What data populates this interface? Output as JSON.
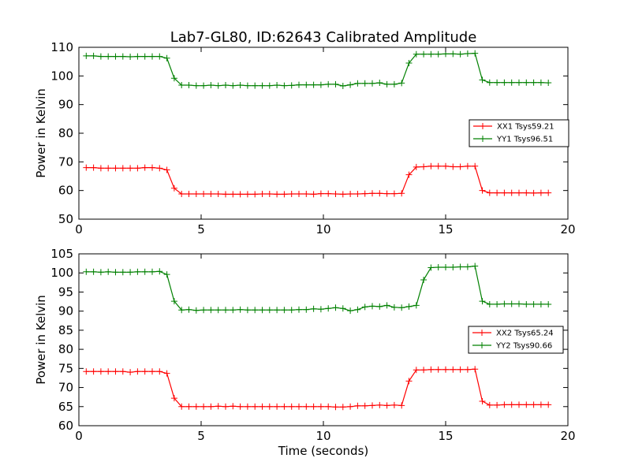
{
  "figure": {
    "title": "Lab7-GL80, ID:62643 Calibrated Amplitude"
  },
  "chart_data": [
    {
      "type": "line",
      "title": "Lab7-GL80, ID:62643 Calibrated Amplitude",
      "xlabel": "",
      "ylabel": "Power in Kelvin",
      "xlim": [
        0,
        20
      ],
      "ylim": [
        50,
        110
      ],
      "xticks": [
        "0",
        "5",
        "10",
        "15",
        "20"
      ],
      "yticks": [
        "50",
        "60",
        "70",
        "80",
        "90",
        "100",
        "110"
      ],
      "grid": false,
      "legend_position": "center-right",
      "x": [
        0.3,
        0.6,
        0.9,
        1.2,
        1.5,
        1.8,
        2.1,
        2.4,
        2.7,
        3.0,
        3.3,
        3.6,
        3.9,
        4.2,
        4.5,
        4.8,
        5.1,
        5.4,
        5.7,
        6.0,
        6.3,
        6.6,
        6.9,
        7.2,
        7.5,
        7.8,
        8.1,
        8.4,
        8.7,
        9.0,
        9.3,
        9.6,
        9.9,
        10.2,
        10.5,
        10.8,
        11.1,
        11.4,
        11.7,
        12.0,
        12.3,
        12.6,
        12.9,
        13.2,
        13.5,
        13.8,
        14.1,
        14.4,
        14.7,
        15.0,
        15.3,
        15.6,
        15.9,
        16.2,
        16.5,
        16.8,
        17.1,
        17.4,
        17.7,
        18.0,
        18.3,
        18.6,
        18.9,
        19.2
      ],
      "series": [
        {
          "name": "XX1 Tsys59.21",
          "color": "#ff0000",
          "values": [
            68.0,
            68.0,
            67.8,
            67.8,
            67.8,
            67.8,
            67.8,
            67.8,
            68.0,
            68.0,
            67.8,
            67.2,
            60.8,
            58.8,
            58.8,
            58.8,
            58.8,
            58.8,
            58.8,
            58.7,
            58.7,
            58.7,
            58.7,
            58.7,
            58.8,
            58.8,
            58.7,
            58.7,
            58.8,
            58.8,
            58.8,
            58.7,
            58.9,
            58.9,
            58.8,
            58.7,
            58.8,
            58.8,
            58.9,
            59.0,
            59.0,
            58.9,
            58.9,
            59.0,
            65.5,
            68.2,
            68.3,
            68.5,
            68.5,
            68.5,
            68.3,
            68.3,
            68.5,
            68.5,
            60.0,
            59.2,
            59.2,
            59.2,
            59.2,
            59.2,
            59.2,
            59.1,
            59.2,
            59.2
          ]
        },
        {
          "name": "YY1 Tsys96.51",
          "color": "#008000",
          "values": [
            107.0,
            107.0,
            106.8,
            106.8,
            106.8,
            106.8,
            106.7,
            106.8,
            106.8,
            106.8,
            106.8,
            106.2,
            99.2,
            96.8,
            96.8,
            96.6,
            96.6,
            96.8,
            96.6,
            96.8,
            96.6,
            96.8,
            96.6,
            96.6,
            96.6,
            96.6,
            96.8,
            96.6,
            96.7,
            96.9,
            96.9,
            96.9,
            96.9,
            97.1,
            97.1,
            96.5,
            96.9,
            97.4,
            97.4,
            97.4,
            97.6,
            97.1,
            97.1,
            97.5,
            104.5,
            107.6,
            107.6,
            107.6,
            107.6,
            107.7,
            107.7,
            107.6,
            107.8,
            107.9,
            98.6,
            97.7,
            97.7,
            97.7,
            97.7,
            97.7,
            97.7,
            97.7,
            97.7,
            97.6
          ]
        }
      ]
    },
    {
      "type": "line",
      "title": "",
      "xlabel": "Time (seconds)",
      "ylabel": "Power in Kelvin",
      "xlim": [
        0,
        20
      ],
      "ylim": [
        60,
        105
      ],
      "xticks": [
        "0",
        "5",
        "10",
        "15",
        "20"
      ],
      "yticks": [
        "60",
        "65",
        "70",
        "75",
        "80",
        "85",
        "90",
        "95",
        "100",
        "105"
      ],
      "grid": false,
      "legend_position": "center-right",
      "x": [
        0.3,
        0.6,
        0.9,
        1.2,
        1.5,
        1.8,
        2.1,
        2.4,
        2.7,
        3.0,
        3.3,
        3.6,
        3.9,
        4.2,
        4.5,
        4.8,
        5.1,
        5.4,
        5.7,
        6.0,
        6.3,
        6.6,
        6.9,
        7.2,
        7.5,
        7.8,
        8.1,
        8.4,
        8.7,
        9.0,
        9.3,
        9.6,
        9.9,
        10.2,
        10.5,
        10.8,
        11.1,
        11.4,
        11.7,
        12.0,
        12.3,
        12.6,
        12.9,
        13.2,
        13.5,
        13.8,
        14.1,
        14.4,
        14.7,
        15.0,
        15.3,
        15.6,
        15.9,
        16.2,
        16.5,
        16.8,
        17.1,
        17.4,
        17.7,
        18.0,
        18.3,
        18.6,
        18.9,
        19.2
      ],
      "series": [
        {
          "name": "XX2 Tsys65.24",
          "color": "#ff0000",
          "values": [
            74.2,
            74.2,
            74.2,
            74.2,
            74.2,
            74.2,
            74.0,
            74.2,
            74.2,
            74.2,
            74.2,
            73.7,
            67.2,
            65.0,
            65.0,
            65.0,
            65.0,
            65.0,
            65.1,
            65.0,
            65.1,
            65.0,
            65.0,
            65.0,
            65.0,
            65.0,
            65.0,
            65.0,
            65.0,
            65.0,
            65.0,
            65.0,
            65.0,
            65.0,
            64.9,
            64.9,
            65.0,
            65.2,
            65.2,
            65.3,
            65.4,
            65.3,
            65.4,
            65.3,
            71.7,
            74.6,
            74.6,
            74.7,
            74.7,
            74.7,
            74.7,
            74.7,
            74.7,
            74.8,
            66.4,
            65.4,
            65.4,
            65.5,
            65.5,
            65.5,
            65.5,
            65.5,
            65.5,
            65.5
          ]
        },
        {
          "name": "YY2 Tsys90.66",
          "color": "#008000",
          "values": [
            100.3,
            100.3,
            100.2,
            100.3,
            100.2,
            100.2,
            100.2,
            100.3,
            100.3,
            100.3,
            100.4,
            99.6,
            92.6,
            90.3,
            90.4,
            90.2,
            90.3,
            90.3,
            90.3,
            90.3,
            90.3,
            90.4,
            90.3,
            90.3,
            90.3,
            90.3,
            90.3,
            90.3,
            90.3,
            90.4,
            90.4,
            90.6,
            90.5,
            90.7,
            90.9,
            90.7,
            90.1,
            90.4,
            91.1,
            91.3,
            91.2,
            91.5,
            91.0,
            90.9,
            91.2,
            91.5,
            98.2,
            101.4,
            101.5,
            101.5,
            101.5,
            101.6,
            101.6,
            101.8,
            92.6,
            91.8,
            91.8,
            91.9,
            91.9,
            91.9,
            91.8,
            91.8,
            91.8,
            91.8
          ]
        }
      ]
    }
  ]
}
